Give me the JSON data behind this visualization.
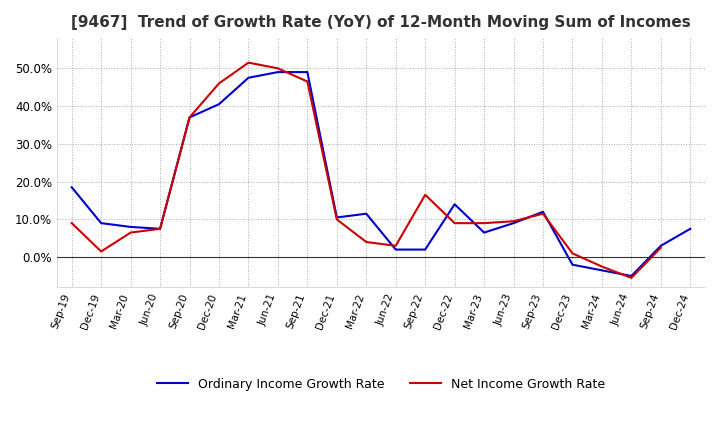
{
  "title": "[9467]  Trend of Growth Rate (YoY) of 12-Month Moving Sum of Incomes",
  "title_fontsize": 11,
  "ylim": [
    -0.08,
    0.58
  ],
  "yticks": [
    0.0,
    0.1,
    0.2,
    0.3,
    0.4,
    0.5
  ],
  "background_color": "#ffffff",
  "plot_bg_color": "#ffffff",
  "grid_color": "#aaaaaa",
  "x_labels": [
    "Sep-19",
    "Dec-19",
    "Mar-20",
    "Jun-20",
    "Sep-20",
    "Dec-20",
    "Mar-21",
    "Jun-21",
    "Sep-21",
    "Dec-21",
    "Mar-22",
    "Jun-22",
    "Sep-22",
    "Dec-22",
    "Mar-23",
    "Jun-23",
    "Sep-23",
    "Dec-23",
    "Mar-24",
    "Jun-24",
    "Sep-24",
    "Dec-24"
  ],
  "ordinary_income": [
    0.185,
    0.09,
    0.08,
    0.075,
    0.37,
    0.405,
    0.475,
    0.49,
    0.49,
    0.105,
    0.115,
    0.02,
    0.02,
    0.14,
    0.065,
    0.09,
    0.12,
    -0.02,
    -0.035,
    -0.05,
    0.03,
    0.075
  ],
  "net_income": [
    0.09,
    0.015,
    0.065,
    0.075,
    0.37,
    0.46,
    0.515,
    0.5,
    0.465,
    0.1,
    0.04,
    0.03,
    0.165,
    0.09,
    0.09,
    0.095,
    0.115,
    0.01,
    -0.025,
    -0.055,
    0.025,
    null
  ],
  "ordinary_color": "#0000cc",
  "net_color": "#cc0000",
  "line_width": 1.5,
  "legend_ordinary": "Ordinary Income Growth Rate",
  "legend_net": "Net Income Growth Rate"
}
